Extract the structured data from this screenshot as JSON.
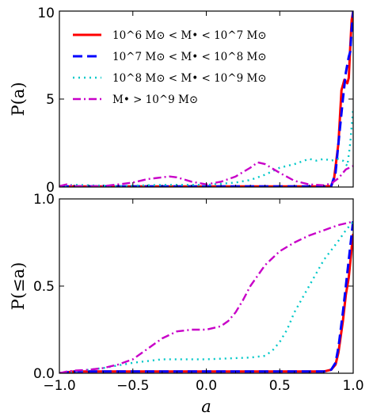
{
  "chart_data": [
    {
      "type": "line",
      "ylabel": "P(a)",
      "xlabel": "",
      "xlim": [
        -1.0,
        1.0
      ],
      "ylim": [
        0,
        10
      ],
      "xticks": [
        "-1.0",
        "-0.5",
        "0.0",
        "0.5",
        "1.0"
      ],
      "yticks": [
        "0",
        "5",
        "10"
      ],
      "legend_position": "top-left",
      "series": [
        {
          "name": "10^6 M⊙ < M• < 10^7 M⊙",
          "color": "#ff0000",
          "x": [
            -1.0,
            0.6,
            0.8,
            0.85,
            0.87,
            0.9,
            0.92,
            0.94,
            0.96,
            0.97,
            0.98,
            0.99,
            1.0
          ],
          "y": [
            0.03,
            0.03,
            0.03,
            0.05,
            0.5,
            2.5,
            5.5,
            6.1,
            5.9,
            6.2,
            8.0,
            9.5,
            10.0
          ]
        },
        {
          "name": "10^7 M⊙ < M• < 10^8 M⊙",
          "color": "#0000ff",
          "x": [
            -1.0,
            0.6,
            0.8,
            0.85,
            0.88,
            0.9,
            0.93,
            0.95,
            0.97,
            0.98,
            0.99,
            1.0
          ],
          "y": [
            0.03,
            0.03,
            0.03,
            0.05,
            0.8,
            2.5,
            5.0,
            6.5,
            7.4,
            7.7,
            9.0,
            10.0
          ]
        },
        {
          "name": "10^8 M⊙ < M• < 10^9 M⊙",
          "color": "#00c8c8",
          "x": [
            -1.0,
            -0.9,
            -0.6,
            -0.3,
            0.0,
            0.2,
            0.3,
            0.4,
            0.5,
            0.6,
            0.7,
            0.75,
            0.8,
            0.85,
            0.9,
            0.93,
            0.96,
            0.98,
            1.0
          ],
          "y": [
            0.05,
            0.12,
            0.05,
            0.12,
            0.12,
            0.25,
            0.4,
            0.7,
            1.1,
            1.3,
            1.6,
            1.5,
            1.6,
            1.5,
            1.6,
            1.5,
            1.2,
            2.5,
            4.5
          ]
        },
        {
          "name": "M• > 10^9 M⊙",
          "color": "#c800c8",
          "x": [
            -1.0,
            -0.95,
            -0.9,
            -0.7,
            -0.5,
            -0.4,
            -0.3,
            -0.25,
            -0.2,
            -0.1,
            0.0,
            0.1,
            0.2,
            0.3,
            0.35,
            0.4,
            0.5,
            0.6,
            0.7,
            0.8,
            0.85,
            0.9,
            0.95,
            1.0
          ],
          "y": [
            0.05,
            0.15,
            0.05,
            0.05,
            0.25,
            0.45,
            0.55,
            0.6,
            0.55,
            0.3,
            0.15,
            0.3,
            0.6,
            1.1,
            1.4,
            1.3,
            0.8,
            0.35,
            0.15,
            0.1,
            0.2,
            0.5,
            1.0,
            1.2
          ]
        }
      ]
    },
    {
      "type": "line",
      "ylabel": "P(≤a)",
      "xlabel": "a",
      "xlim": [
        -1.0,
        1.0
      ],
      "ylim": [
        0.0,
        1.0
      ],
      "xticks": [
        "-1.0",
        "-0.5",
        "0.0",
        "0.5",
        "1.0"
      ],
      "yticks": [
        "0.0",
        "0.5",
        "1.0"
      ],
      "series": [
        {
          "name": "10^6 M⊙ < M• < 10^7 M⊙",
          "color": "#ff0000",
          "x": [
            -1.0,
            -0.9,
            0.0,
            0.8,
            0.85,
            0.88,
            0.9,
            0.93,
            0.95,
            0.97,
            0.99,
            1.0
          ],
          "y": [
            0.0,
            0.01,
            0.01,
            0.01,
            0.02,
            0.05,
            0.12,
            0.3,
            0.45,
            0.55,
            0.72,
            0.8
          ]
        },
        {
          "name": "10^7 M⊙ < M• < 10^8 M⊙",
          "color": "#0000ff",
          "x": [
            -1.0,
            -0.9,
            0.0,
            0.8,
            0.85,
            0.88,
            0.9,
            0.93,
            0.95,
            0.97,
            0.99,
            1.0
          ],
          "y": [
            0.0,
            0.01,
            0.01,
            0.01,
            0.02,
            0.06,
            0.15,
            0.35,
            0.5,
            0.65,
            0.8,
            0.88
          ]
        },
        {
          "name": "10^8 M⊙ < M• < 10^9 M⊙",
          "color": "#00c8c8",
          "x": [
            -1.0,
            -0.9,
            -0.7,
            -0.5,
            -0.3,
            0.0,
            0.3,
            0.4,
            0.45,
            0.5,
            0.55,
            0.6,
            0.7,
            0.8,
            0.9,
            0.95,
            1.0
          ],
          "y": [
            0.0,
            0.01,
            0.03,
            0.06,
            0.08,
            0.08,
            0.09,
            0.1,
            0.13,
            0.18,
            0.25,
            0.35,
            0.5,
            0.65,
            0.76,
            0.82,
            0.87
          ]
        },
        {
          "name": "M• > 10^9 M⊙",
          "color": "#c800c8",
          "x": [
            -1.0,
            -0.95,
            -0.9,
            -0.8,
            -0.7,
            -0.6,
            -0.5,
            -0.4,
            -0.3,
            -0.2,
            -0.1,
            0.0,
            0.1,
            0.15,
            0.2,
            0.25,
            0.3,
            0.35,
            0.4,
            0.5,
            0.6,
            0.7,
            0.8,
            0.9,
            1.0
          ],
          "y": [
            0.0,
            0.01,
            0.015,
            0.02,
            0.03,
            0.05,
            0.08,
            0.14,
            0.2,
            0.24,
            0.25,
            0.25,
            0.27,
            0.3,
            0.35,
            0.42,
            0.5,
            0.56,
            0.62,
            0.7,
            0.75,
            0.79,
            0.82,
            0.85,
            0.87
          ]
        }
      ]
    }
  ]
}
